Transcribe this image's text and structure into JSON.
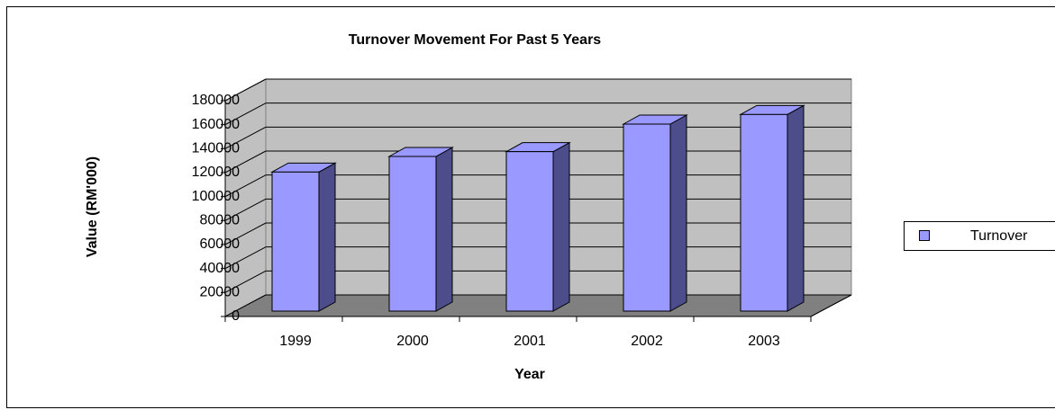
{
  "chart_data": {
    "type": "bar3d",
    "title": "Turnover Movement For Past 5 Years",
    "x_label": "Year",
    "y_label": "Value (RM'000)",
    "categories": [
      "1999",
      "2000",
      "2001",
      "2002",
      "2003"
    ],
    "series": [
      {
        "name": "Turnover",
        "color": "#9999ff",
        "values": [
          116000,
          129000,
          133000,
          156000,
          164000
        ]
      }
    ],
    "ylim": [
      0,
      180000
    ],
    "yticks": [
      0,
      20000,
      40000,
      60000,
      80000,
      100000,
      120000,
      140000,
      160000,
      180000
    ],
    "grid": true,
    "legend": "right"
  }
}
